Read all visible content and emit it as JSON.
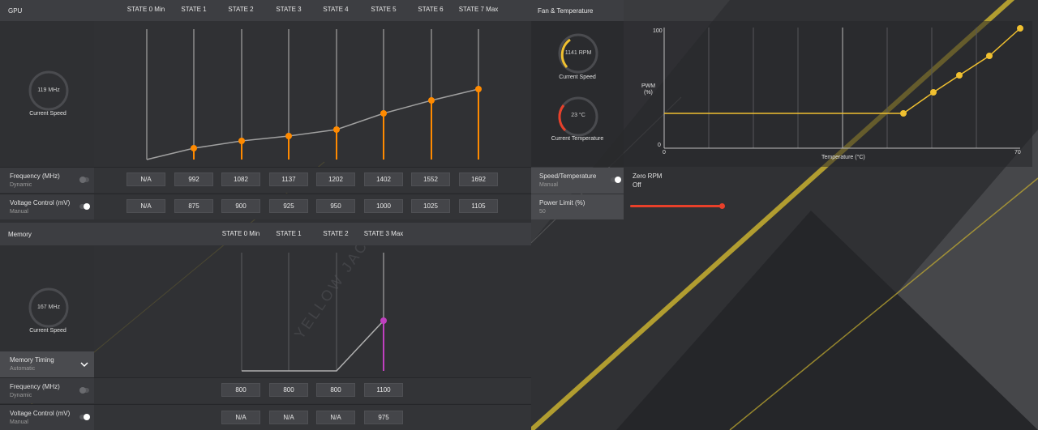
{
  "gpu": {
    "header": "GPU",
    "states": [
      "STATE 0 Min",
      "STATE 1",
      "STATE 2",
      "STATE 3",
      "STATE 4",
      "STATE 5",
      "STATE 6",
      "STATE 7 Max"
    ],
    "gauge_value": "119 MHz",
    "gauge_caption": "Current Speed",
    "frequency": {
      "label": "Frequency (MHz)",
      "mode": "Dynamic",
      "values": [
        "N/A",
        "992",
        "1082",
        "1137",
        "1202",
        "1402",
        "1552",
        "1692"
      ]
    },
    "voltage": {
      "label": "Voltage Control (mV)",
      "mode": "Manual",
      "values": [
        "N/A",
        "875",
        "900",
        "925",
        "950",
        "1000",
        "1025",
        "1105"
      ]
    },
    "accent": "#ff8a00"
  },
  "memory": {
    "header": "Memory",
    "states": [
      "STATE 0 Min",
      "STATE 1",
      "STATE 2",
      "STATE 3 Max"
    ],
    "gauge_value": "167 MHz",
    "gauge_caption": "Current Speed",
    "timing": {
      "label": "Memory Timing",
      "mode": "Automatic"
    },
    "frequency": {
      "label": "Frequency (MHz)",
      "mode": "Dynamic",
      "values": [
        "800",
        "800",
        "800",
        "1100"
      ]
    },
    "voltage": {
      "label": "Voltage Control (mV)",
      "mode": "Manual",
      "values": [
        "N/A",
        "N/A",
        "N/A",
        "975"
      ]
    },
    "accent": "#c040c0"
  },
  "fan": {
    "header": "Fan & Temperature",
    "speed_value": "1141 RPM",
    "speed_caption": "Current Speed",
    "temp_value": "23 °C",
    "temp_caption": "Current Temperature",
    "y_label_1": "PWM",
    "y_label_2": "(%)",
    "y_max": "100",
    "y_min": "0",
    "x_min": "0",
    "x_max": "70",
    "x_label": "Temperature (°C)",
    "speed_temp": {
      "label": "Speed/Temperature",
      "mode": "Manual"
    },
    "zero_rpm": {
      "label": "Zero RPM",
      "value": "Off"
    },
    "power_limit": {
      "label": "Power Limit (%)",
      "value": "50"
    },
    "accent": "#f0c030",
    "power_color": "#e8402a"
  },
  "watermark": "YELLOW JACK"
}
